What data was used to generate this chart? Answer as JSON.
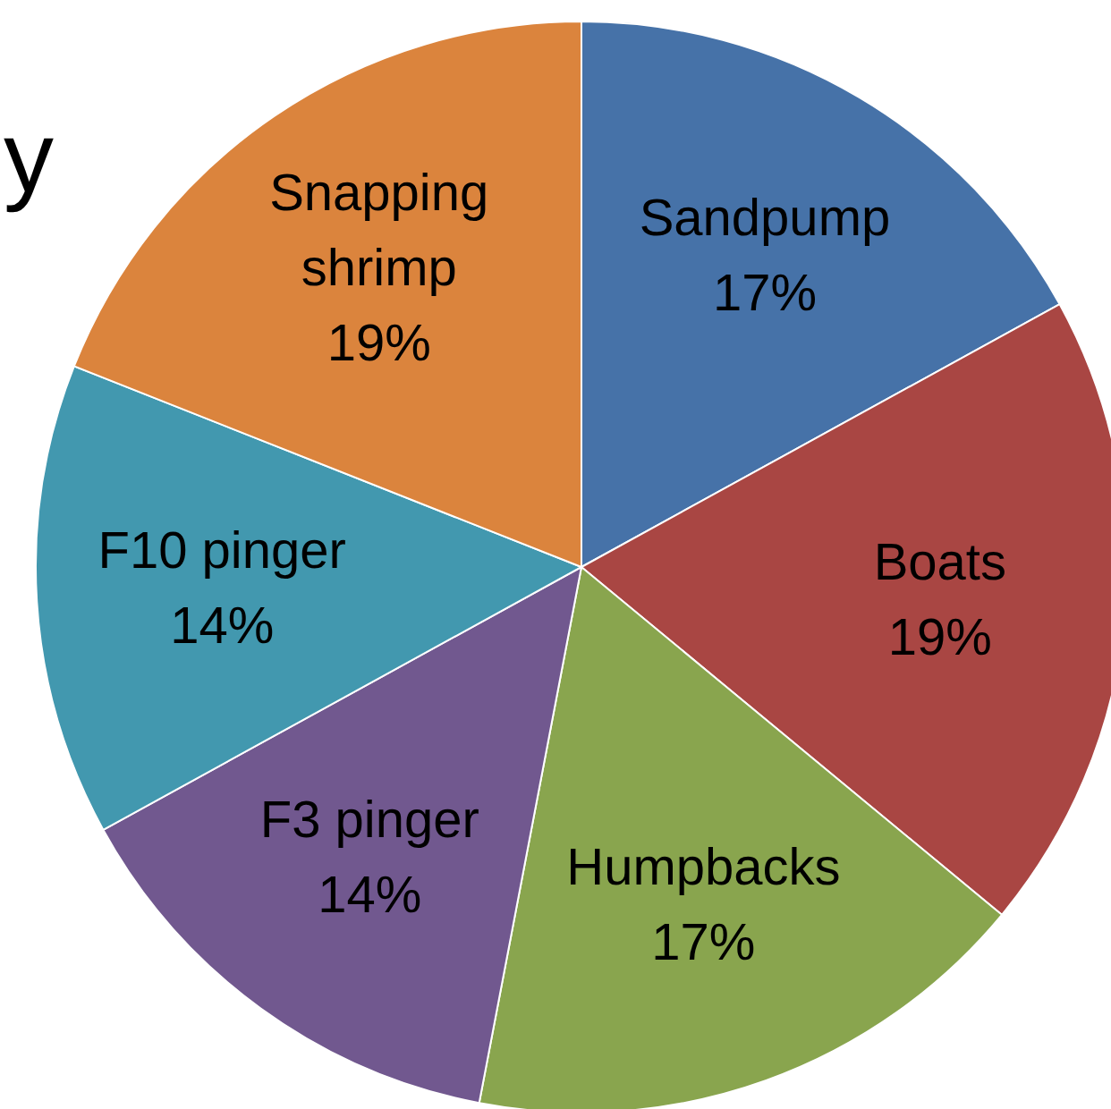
{
  "chart_data": {
    "type": "pie",
    "title": "y",
    "categories": [
      "Sandpump",
      "Boats",
      "Humpbacks",
      "F3 pinger",
      "F10 pinger",
      "Snapping shrimp"
    ],
    "values": [
      17,
      19,
      17,
      14,
      14,
      19
    ],
    "value_labels": [
      "17%",
      "19%",
      "17%",
      "14%",
      "14%",
      "19%"
    ],
    "colors": [
      "#4672a8",
      "#a94643",
      "#89a54e",
      "#71588f",
      "#4298af",
      "#db843d"
    ],
    "legend": false
  }
}
